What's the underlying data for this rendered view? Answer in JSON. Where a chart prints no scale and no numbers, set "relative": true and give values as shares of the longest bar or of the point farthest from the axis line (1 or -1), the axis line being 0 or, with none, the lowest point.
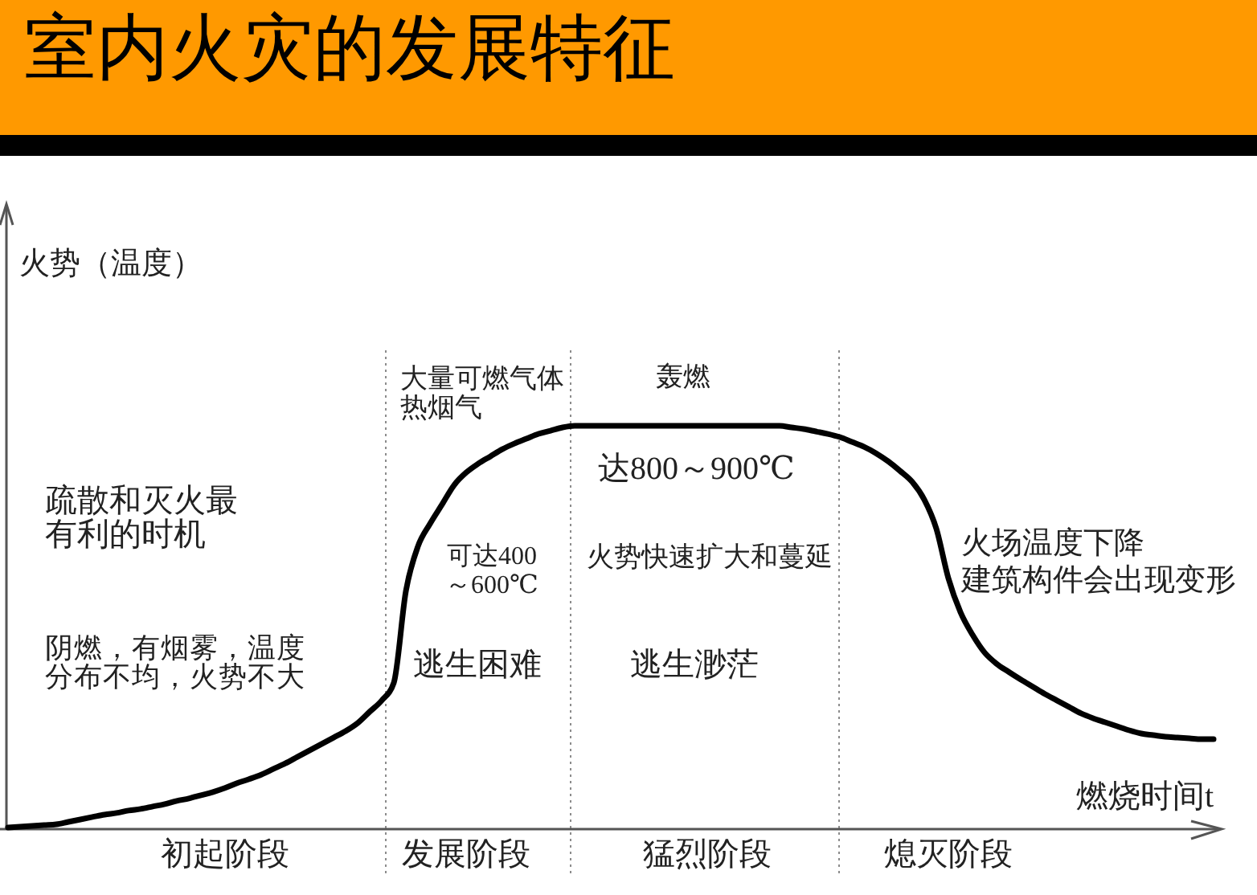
{
  "chart_data": {
    "type": "line",
    "title": "室内火灾的发展特征",
    "xlabel": "燃烧时间t",
    "ylabel": "火势（温度）",
    "relative": true,
    "color": "#000000",
    "categories": [
      null,
      null,
      null,
      null,
      null,
      null,
      null,
      null,
      null,
      null,
      null,
      null,
      null,
      null,
      null,
      null,
      null,
      null,
      "初起阶段",
      null,
      null,
      null,
      null,
      null,
      null,
      null,
      null,
      null,
      null,
      null,
      null,
      null,
      null,
      null,
      null,
      null,
      null,
      null,
      "发展阶段",
      null,
      null,
      null,
      null,
      null,
      null,
      null,
      null,
      null,
      null,
      null,
      null,
      null,
      null,
      null,
      null,
      null,
      null,
      null,
      "猛烈阶段",
      null,
      null,
      null,
      null,
      null,
      null,
      null,
      null,
      null,
      null,
      null,
      null,
      null,
      null,
      null,
      null,
      null,
      null,
      null,
      "熄灭阶段",
      null,
      null,
      null,
      null,
      null,
      null,
      null,
      null,
      null,
      null,
      null,
      null,
      null,
      null,
      null,
      null,
      null,
      null,
      null,
      null,
      null,
      null
    ],
    "values": [
      0.004,
      0.006,
      0.008,
      0.01,
      0.012,
      0.018,
      0.024,
      0.03,
      0.036,
      0.04,
      0.046,
      0.05,
      0.056,
      0.062,
      0.07,
      0.076,
      0.084,
      0.092,
      0.102,
      0.114,
      0.124,
      0.135,
      0.149,
      0.163,
      0.179,
      0.195,
      0.211,
      0.227,
      0.243,
      0.263,
      0.291,
      0.319,
      0.363,
      0.59,
      0.701,
      0.757,
      0.805,
      0.853,
      0.884,
      0.906,
      0.924,
      0.942,
      0.956,
      0.968,
      0.98,
      0.988,
      0.996,
      1,
      1,
      1,
      1,
      1,
      1,
      1,
      1,
      1,
      1,
      1,
      1,
      1,
      1,
      1,
      1,
      1,
      1,
      0.996,
      0.992,
      0.986,
      0.98,
      0.972,
      0.96,
      0.948,
      0.932,
      0.912,
      0.888,
      0.861,
      0.817,
      0.745,
      0.622,
      0.538,
      0.482,
      0.438,
      0.41,
      0.39,
      0.371,
      0.353,
      0.335,
      0.319,
      0.303,
      0.287,
      0.275,
      0.265,
      0.255,
      0.245,
      0.237,
      0.233,
      0.229,
      0.227,
      0.225,
      0.223,
      0.223
    ],
    "annotations": [
      "大量可燃气体热烟气",
      "轰燃",
      "达800～900℃",
      "疏散和灭火最有利的时机",
      "可达400～600℃",
      "火势快速扩大和蔓延",
      "火场温度下降建筑构件会出现变形",
      "阴燃，有烟雾，温度分布不均，火势不大",
      "逃生困难",
      "逃生渺茫"
    ]
  }
}
